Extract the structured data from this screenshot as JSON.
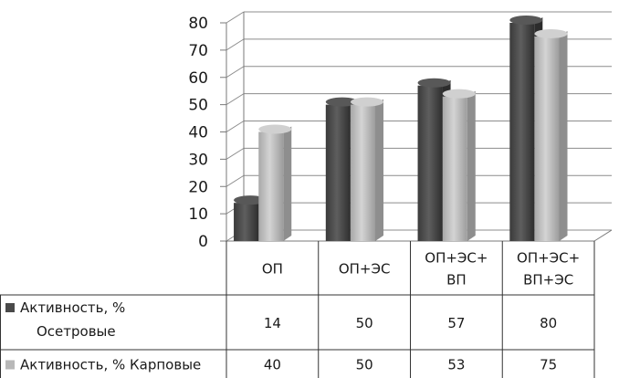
{
  "chart_data": {
    "type": "bar",
    "style": "3d-clustered-column-with-data-table",
    "categories": [
      [
        "ОП"
      ],
      [
        "ОП+ЭС"
      ],
      [
        "ОП+ЭС+",
        "ВП"
      ],
      [
        "ОП+ЭС+",
        "ВП+ЭС"
      ]
    ],
    "series": [
      {
        "name": [
          "Активность, %",
          "Осетровые"
        ],
        "values": [
          14,
          50,
          57,
          80
        ],
        "value_labels": [
          "14",
          "50",
          "57",
          "80"
        ],
        "color": "#4a4a4a"
      },
      {
        "name": [
          "Активность, % Карповые"
        ],
        "values": [
          40,
          50,
          53,
          75
        ],
        "value_labels": [
          "40",
          "50",
          "53",
          "75"
        ],
        "color": "#b8b8b8"
      }
    ],
    "ylim": [
      0,
      80
    ],
    "yticks": [
      "0",
      "10",
      "20",
      "30",
      "40",
      "50",
      "60",
      "70",
      "80"
    ],
    "grid": true,
    "legend": "data-table"
  }
}
